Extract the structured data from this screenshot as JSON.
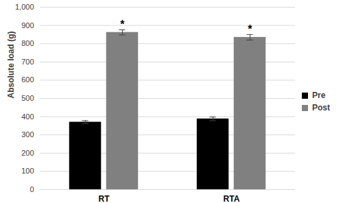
{
  "chart_data": {
    "type": "bar",
    "categories": [
      "RT",
      "RTA"
    ],
    "series": [
      {
        "name": "Pre",
        "color": "#000000",
        "values": [
          370,
          388
        ],
        "errors": [
          8,
          10
        ]
      },
      {
        "name": "Post",
        "color": "#808080",
        "values": [
          862,
          835
        ],
        "errors": [
          14,
          15
        ]
      }
    ],
    "ylabel": "Absolute load (g)",
    "ylim": [
      0,
      1000
    ],
    "yticks": [
      0,
      100,
      200,
      300,
      400,
      500,
      600,
      700,
      800,
      900,
      1000
    ],
    "grid": true,
    "legend": "right",
    "annotations": [
      {
        "text": "*",
        "category": "RT",
        "series": "Post"
      },
      {
        "text": "*",
        "category": "RTA",
        "series": "Post"
      }
    ]
  }
}
